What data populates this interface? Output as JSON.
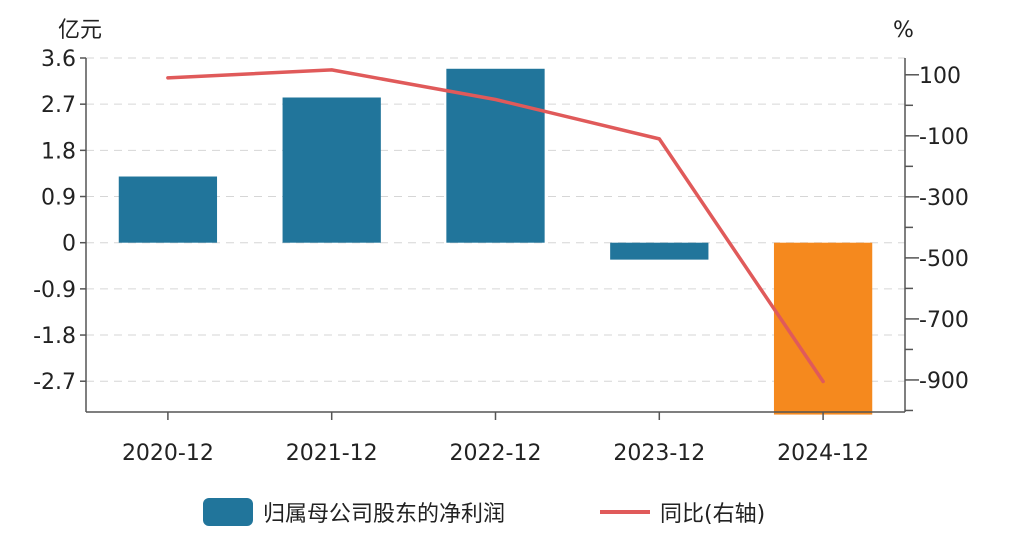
{
  "chart_data": {
    "type": "bar",
    "categories": [
      "2020-12",
      "2021-12",
      "2022-12",
      "2023-12",
      "2024-12"
    ],
    "left_unit": "亿元",
    "right_unit": "%",
    "bar_series": {
      "name": "归属母公司股东的净利润",
      "values": [
        1.29,
        2.83,
        3.39,
        -0.33,
        -3.35
      ],
      "colors": [
        "#21759b",
        "#21759b",
        "#21759b",
        "#21759b",
        "#f5891e"
      ]
    },
    "line_series": {
      "name": "同比(右轴)",
      "values": [
        90,
        116,
        19,
        -110,
        -905
      ],
      "color": "#e05a5a"
    },
    "y_left": {
      "ticks": [
        "3.6",
        "2.7",
        "1.8",
        "0.9",
        "0",
        "-0.9",
        "-1.8",
        "-2.7"
      ],
      "range": [
        -3.3,
        3.6
      ]
    },
    "y_right": {
      "ticks": [
        "100",
        "-100",
        "-300",
        "-500",
        "-700",
        "-900"
      ],
      "range": [
        -1005,
        155
      ]
    },
    "grid": true,
    "legend_position": "bottom"
  }
}
